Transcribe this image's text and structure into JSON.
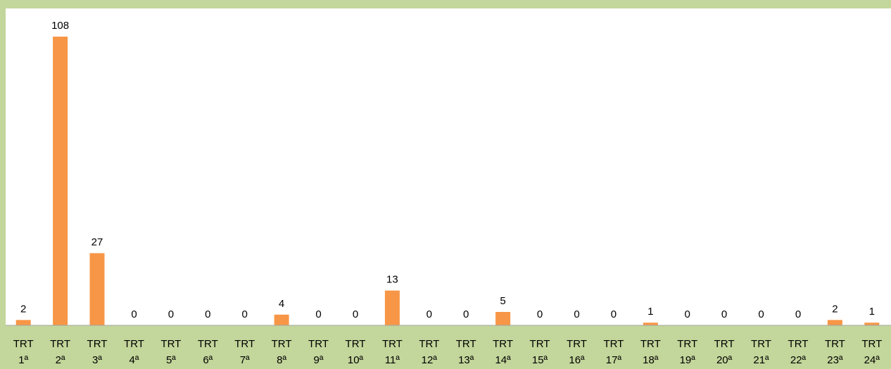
{
  "chart_data": {
    "type": "bar",
    "categories": [
      [
        "TRT",
        "1ª"
      ],
      [
        "TRT",
        "2ª"
      ],
      [
        "TRT",
        "3ª"
      ],
      [
        "TRT",
        "4ª"
      ],
      [
        "TRT",
        "5ª"
      ],
      [
        "TRT",
        "6ª"
      ],
      [
        "TRT",
        "7ª"
      ],
      [
        "TRT",
        "8ª"
      ],
      [
        "TRT",
        "9ª"
      ],
      [
        "TRT",
        "10ª"
      ],
      [
        "TRT",
        "11ª"
      ],
      [
        "TRT",
        "12ª"
      ],
      [
        "TRT",
        "13ª"
      ],
      [
        "TRT",
        "14ª"
      ],
      [
        "TRT",
        "15ª"
      ],
      [
        "TRT",
        "16ª"
      ],
      [
        "TRT",
        "17ª"
      ],
      [
        "TRT",
        "18ª"
      ],
      [
        "TRT",
        "19ª"
      ],
      [
        "TRT",
        "20ª"
      ],
      [
        "TRT",
        "21ª"
      ],
      [
        "TRT",
        "22ª"
      ],
      [
        "TRT",
        "23ª"
      ],
      [
        "TRT",
        "24ª"
      ]
    ],
    "values": [
      2,
      108,
      27,
      0,
      0,
      0,
      0,
      4,
      0,
      0,
      13,
      0,
      0,
      5,
      0,
      0,
      0,
      1,
      0,
      0,
      0,
      0,
      2,
      1
    ],
    "ylim": [
      0,
      108
    ],
    "grid": false,
    "legend": "none",
    "title": "",
    "xlabel": "",
    "ylabel": "",
    "colors": {
      "bar": "#f79646",
      "plot_background": "#ffffff",
      "frame_background": "#c3d69b",
      "axis_line": "#a6a6a6"
    }
  }
}
